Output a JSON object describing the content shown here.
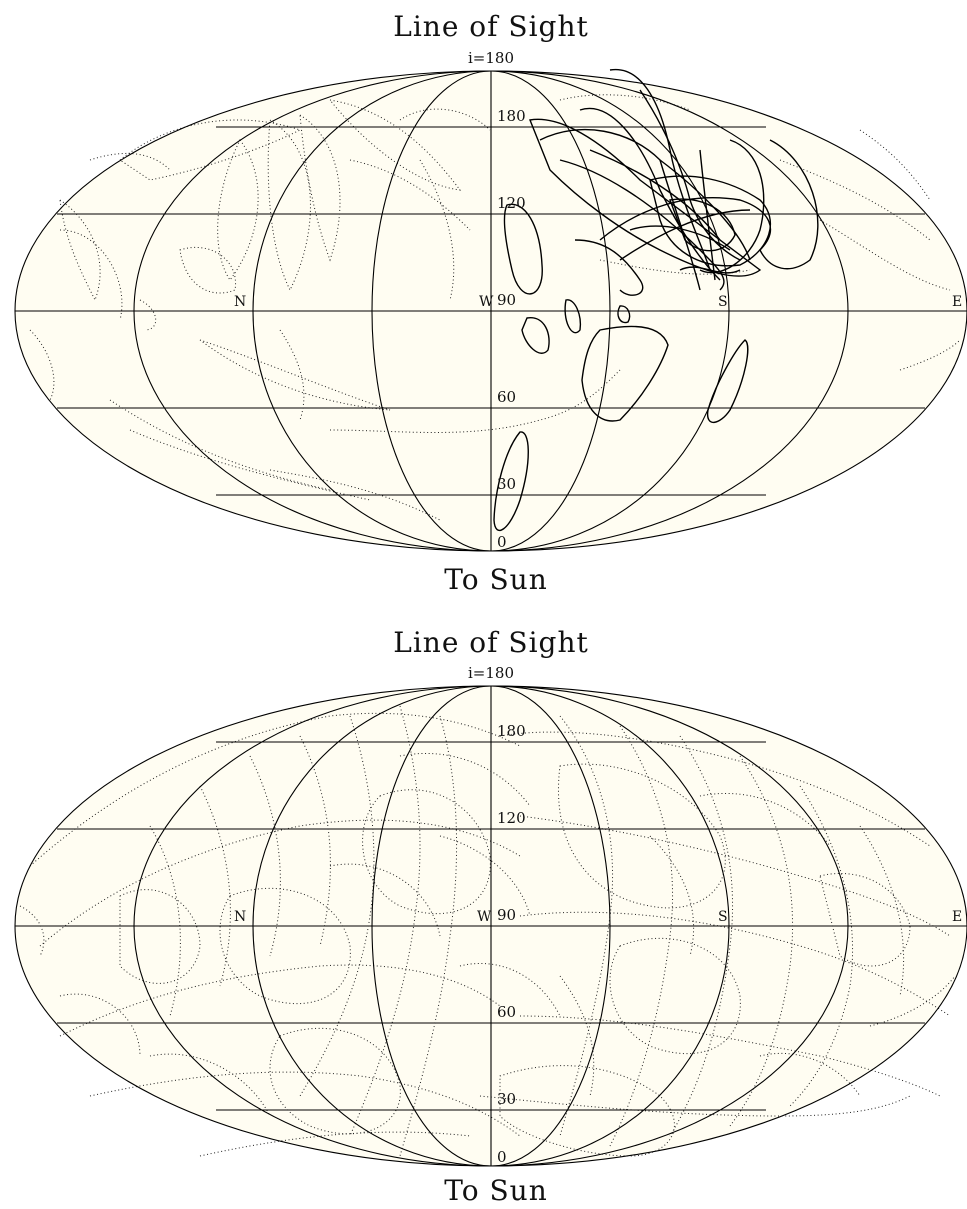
{
  "panels": [
    {
      "title": "Line of Sight",
      "top_label": "i=180",
      "bottom_label": "To Sun",
      "lat_labels": [
        "180",
        "120",
        "90",
        "60",
        "30",
        "0"
      ],
      "dir_labels": {
        "north": "N",
        "west": "W",
        "south": "S",
        "east": "E"
      }
    },
    {
      "title": "Line of Sight",
      "top_label": "i=180",
      "bottom_label": "To Sun",
      "lat_labels": [
        "180",
        "120",
        "90",
        "60",
        "30",
        "0"
      ],
      "dir_labels": {
        "north": "N",
        "west": "W",
        "south": "S",
        "east": "E"
      }
    }
  ]
}
